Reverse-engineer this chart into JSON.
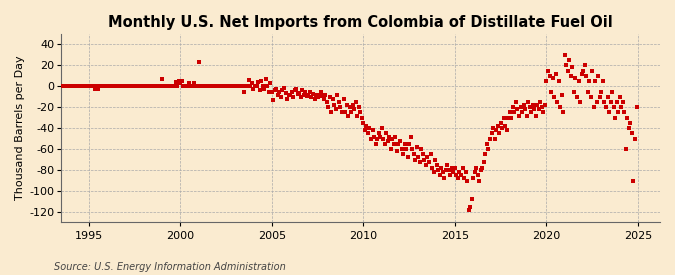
{
  "title": "Monthly U.S. Net Imports from Colombia of Distillate Fuel Oil",
  "ylabel": "Thousand Barrels per Day",
  "source": "Source: U.S. Energy Information Administration",
  "ylim": [
    -130,
    50
  ],
  "yticks": [
    40,
    20,
    0,
    -20,
    -40,
    -60,
    -80,
    -100,
    -120
  ],
  "xlim_start": 1993.5,
  "xlim_end": 2026.2,
  "xticks": [
    1995,
    2000,
    2005,
    2010,
    2015,
    2020,
    2025
  ],
  "background_color": "#faebd0",
  "dot_color": "#cc0000",
  "dot_size": 9,
  "title_fontsize": 10.5,
  "label_fontsize": 8,
  "tick_fontsize": 8,
  "source_fontsize": 7,
  "data": [
    [
      1993.0,
      0
    ],
    [
      1993.083,
      0
    ],
    [
      1993.167,
      0
    ],
    [
      1993.25,
      0
    ],
    [
      1993.333,
      0
    ],
    [
      1993.417,
      0
    ],
    [
      1993.5,
      0
    ],
    [
      1993.583,
      0
    ],
    [
      1993.667,
      0
    ],
    [
      1993.75,
      0
    ],
    [
      1993.833,
      0
    ],
    [
      1993.917,
      0
    ],
    [
      1994.0,
      0
    ],
    [
      1994.083,
      0
    ],
    [
      1994.167,
      0
    ],
    [
      1994.25,
      0
    ],
    [
      1994.333,
      0
    ],
    [
      1994.417,
      0
    ],
    [
      1994.5,
      0
    ],
    [
      1994.583,
      0
    ],
    [
      1994.667,
      0
    ],
    [
      1994.75,
      0
    ],
    [
      1994.833,
      0
    ],
    [
      1994.917,
      0
    ],
    [
      1995.0,
      0
    ],
    [
      1995.083,
      0
    ],
    [
      1995.167,
      0
    ],
    [
      1995.25,
      0
    ],
    [
      1995.333,
      -3
    ],
    [
      1995.417,
      0
    ],
    [
      1995.5,
      -3
    ],
    [
      1995.583,
      0
    ],
    [
      1995.667,
      0
    ],
    [
      1995.75,
      0
    ],
    [
      1995.833,
      0
    ],
    [
      1995.917,
      0
    ],
    [
      1996.0,
      0
    ],
    [
      1996.083,
      0
    ],
    [
      1996.167,
      0
    ],
    [
      1996.25,
      0
    ],
    [
      1996.333,
      0
    ],
    [
      1996.417,
      0
    ],
    [
      1996.5,
      0
    ],
    [
      1996.583,
      0
    ],
    [
      1996.667,
      0
    ],
    [
      1996.75,
      0
    ],
    [
      1996.833,
      0
    ],
    [
      1996.917,
      0
    ],
    [
      1997.0,
      0
    ],
    [
      1997.083,
      0
    ],
    [
      1997.167,
      0
    ],
    [
      1997.25,
      0
    ],
    [
      1997.333,
      0
    ],
    [
      1997.417,
      0
    ],
    [
      1997.5,
      0
    ],
    [
      1997.583,
      0
    ],
    [
      1997.667,
      0
    ],
    [
      1997.75,
      0
    ],
    [
      1997.833,
      0
    ],
    [
      1997.917,
      0
    ],
    [
      1998.0,
      0
    ],
    [
      1998.083,
      0
    ],
    [
      1998.167,
      0
    ],
    [
      1998.25,
      0
    ],
    [
      1998.333,
      0
    ],
    [
      1998.417,
      0
    ],
    [
      1998.5,
      0
    ],
    [
      1998.583,
      0
    ],
    [
      1998.667,
      0
    ],
    [
      1998.75,
      0
    ],
    [
      1998.833,
      0
    ],
    [
      1998.917,
      0
    ],
    [
      1999.0,
      7
    ],
    [
      1999.083,
      0
    ],
    [
      1999.167,
      0
    ],
    [
      1999.25,
      0
    ],
    [
      1999.333,
      0
    ],
    [
      1999.417,
      0
    ],
    [
      1999.5,
      0
    ],
    [
      1999.583,
      0
    ],
    [
      1999.667,
      0
    ],
    [
      1999.75,
      4
    ],
    [
      1999.833,
      0
    ],
    [
      1999.917,
      5
    ],
    [
      2000.0,
      3
    ],
    [
      2000.083,
      5
    ],
    [
      2000.167,
      0
    ],
    [
      2000.25,
      0
    ],
    [
      2000.333,
      0
    ],
    [
      2000.417,
      0
    ],
    [
      2000.5,
      3
    ],
    [
      2000.583,
      0
    ],
    [
      2000.667,
      0
    ],
    [
      2000.75,
      3
    ],
    [
      2000.833,
      0
    ],
    [
      2000.917,
      0
    ],
    [
      2001.0,
      23
    ],
    [
      2001.083,
      0
    ],
    [
      2001.167,
      0
    ],
    [
      2001.25,
      0
    ],
    [
      2001.333,
      0
    ],
    [
      2001.417,
      0
    ],
    [
      2001.5,
      0
    ],
    [
      2001.583,
      0
    ],
    [
      2001.667,
      0
    ],
    [
      2001.75,
      0
    ],
    [
      2001.833,
      0
    ],
    [
      2001.917,
      0
    ],
    [
      2002.0,
      0
    ],
    [
      2002.083,
      0
    ],
    [
      2002.167,
      0
    ],
    [
      2002.25,
      0
    ],
    [
      2002.333,
      0
    ],
    [
      2002.417,
      0
    ],
    [
      2002.5,
      0
    ],
    [
      2002.583,
      0
    ],
    [
      2002.667,
      0
    ],
    [
      2002.75,
      0
    ],
    [
      2002.833,
      0
    ],
    [
      2002.917,
      0
    ],
    [
      2003.0,
      0
    ],
    [
      2003.083,
      0
    ],
    [
      2003.167,
      0
    ],
    [
      2003.25,
      0
    ],
    [
      2003.333,
      0
    ],
    [
      2003.417,
      0
    ],
    [
      2003.5,
      -5
    ],
    [
      2003.583,
      0
    ],
    [
      2003.667,
      0
    ],
    [
      2003.75,
      6
    ],
    [
      2003.833,
      0
    ],
    [
      2003.917,
      3
    ],
    [
      2004.0,
      -3
    ],
    [
      2004.083,
      0
    ],
    [
      2004.167,
      0
    ],
    [
      2004.25,
      4
    ],
    [
      2004.333,
      -4
    ],
    [
      2004.417,
      5
    ],
    [
      2004.5,
      0
    ],
    [
      2004.583,
      -3
    ],
    [
      2004.667,
      7
    ],
    [
      2004.75,
      0
    ],
    [
      2004.833,
      -5
    ],
    [
      2004.917,
      3
    ],
    [
      2005.0,
      -5
    ],
    [
      2005.083,
      -13
    ],
    [
      2005.167,
      -4
    ],
    [
      2005.25,
      -3
    ],
    [
      2005.333,
      -8
    ],
    [
      2005.417,
      -5
    ],
    [
      2005.5,
      -10
    ],
    [
      2005.583,
      -4
    ],
    [
      2005.667,
      -2
    ],
    [
      2005.75,
      -6
    ],
    [
      2005.833,
      -12
    ],
    [
      2005.917,
      -8
    ],
    [
      2006.0,
      -8
    ],
    [
      2006.083,
      -5
    ],
    [
      2006.167,
      -10
    ],
    [
      2006.25,
      -4
    ],
    [
      2006.333,
      -3
    ],
    [
      2006.417,
      -7
    ],
    [
      2006.5,
      -6
    ],
    [
      2006.583,
      -10
    ],
    [
      2006.667,
      -4
    ],
    [
      2006.75,
      -8
    ],
    [
      2006.833,
      -5
    ],
    [
      2006.917,
      -9
    ],
    [
      2007.0,
      -8
    ],
    [
      2007.083,
      -5
    ],
    [
      2007.167,
      -10
    ],
    [
      2007.25,
      -7
    ],
    [
      2007.333,
      -12
    ],
    [
      2007.417,
      -8
    ],
    [
      2007.5,
      -10
    ],
    [
      2007.583,
      -8
    ],
    [
      2007.667,
      -5
    ],
    [
      2007.75,
      -9
    ],
    [
      2007.833,
      -12
    ],
    [
      2007.917,
      -8
    ],
    [
      2008.0,
      -15
    ],
    [
      2008.083,
      -20
    ],
    [
      2008.167,
      -10
    ],
    [
      2008.25,
      -25
    ],
    [
      2008.333,
      -12
    ],
    [
      2008.417,
      -18
    ],
    [
      2008.5,
      -22
    ],
    [
      2008.583,
      -8
    ],
    [
      2008.667,
      -15
    ],
    [
      2008.75,
      -20
    ],
    [
      2008.833,
      -25
    ],
    [
      2008.917,
      -12
    ],
    [
      2009.0,
      -25
    ],
    [
      2009.083,
      -18
    ],
    [
      2009.167,
      -28
    ],
    [
      2009.25,
      -20
    ],
    [
      2009.333,
      -25
    ],
    [
      2009.417,
      -18
    ],
    [
      2009.5,
      -22
    ],
    [
      2009.583,
      -15
    ],
    [
      2009.667,
      -28
    ],
    [
      2009.75,
      -20
    ],
    [
      2009.833,
      -25
    ],
    [
      2009.917,
      -30
    ],
    [
      2010.0,
      -35
    ],
    [
      2010.083,
      -42
    ],
    [
      2010.167,
      -38
    ],
    [
      2010.25,
      -45
    ],
    [
      2010.333,
      -40
    ],
    [
      2010.417,
      -50
    ],
    [
      2010.5,
      -42
    ],
    [
      2010.583,
      -48
    ],
    [
      2010.667,
      -55
    ],
    [
      2010.75,
      -50
    ],
    [
      2010.833,
      -45
    ],
    [
      2010.917,
      -48
    ],
    [
      2011.0,
      -40
    ],
    [
      2011.083,
      -50
    ],
    [
      2011.167,
      -55
    ],
    [
      2011.25,
      -45
    ],
    [
      2011.333,
      -52
    ],
    [
      2011.417,
      -48
    ],
    [
      2011.5,
      -60
    ],
    [
      2011.583,
      -50
    ],
    [
      2011.667,
      -55
    ],
    [
      2011.75,
      -48
    ],
    [
      2011.833,
      -62
    ],
    [
      2011.917,
      -55
    ],
    [
      2012.0,
      -52
    ],
    [
      2012.083,
      -60
    ],
    [
      2012.167,
      -65
    ],
    [
      2012.25,
      -55
    ],
    [
      2012.333,
      -60
    ],
    [
      2012.417,
      -68
    ],
    [
      2012.5,
      -55
    ],
    [
      2012.583,
      -48
    ],
    [
      2012.667,
      -60
    ],
    [
      2012.75,
      -65
    ],
    [
      2012.833,
      -70
    ],
    [
      2012.917,
      -58
    ],
    [
      2013.0,
      -68
    ],
    [
      2013.083,
      -72
    ],
    [
      2013.167,
      -60
    ],
    [
      2013.25,
      -65
    ],
    [
      2013.333,
      -70
    ],
    [
      2013.417,
      -75
    ],
    [
      2013.5,
      -68
    ],
    [
      2013.583,
      -72
    ],
    [
      2013.667,
      -65
    ],
    [
      2013.75,
      -78
    ],
    [
      2013.833,
      -82
    ],
    [
      2013.917,
      -70
    ],
    [
      2014.0,
      -75
    ],
    [
      2014.083,
      -80
    ],
    [
      2014.167,
      -85
    ],
    [
      2014.25,
      -78
    ],
    [
      2014.333,
      -82
    ],
    [
      2014.417,
      -88
    ],
    [
      2014.5,
      -80
    ],
    [
      2014.583,
      -75
    ],
    [
      2014.667,
      -80
    ],
    [
      2014.75,
      -85
    ],
    [
      2014.833,
      -78
    ],
    [
      2014.917,
      -82
    ],
    [
      2015.0,
      -78
    ],
    [
      2015.083,
      -85
    ],
    [
      2015.167,
      -88
    ],
    [
      2015.25,
      -82
    ],
    [
      2015.333,
      -85
    ],
    [
      2015.417,
      -78
    ],
    [
      2015.5,
      -88
    ],
    [
      2015.583,
      -82
    ],
    [
      2015.667,
      -90
    ],
    [
      2015.75,
      -118
    ],
    [
      2015.833,
      -115
    ],
    [
      2015.917,
      -108
    ],
    [
      2016.0,
      -88
    ],
    [
      2016.083,
      -82
    ],
    [
      2016.167,
      -78
    ],
    [
      2016.25,
      -85
    ],
    [
      2016.333,
      -90
    ],
    [
      2016.417,
      -80
    ],
    [
      2016.5,
      -78
    ],
    [
      2016.583,
      -72
    ],
    [
      2016.667,
      -65
    ],
    [
      2016.75,
      -55
    ],
    [
      2016.833,
      -60
    ],
    [
      2016.917,
      -50
    ],
    [
      2017.0,
      -45
    ],
    [
      2017.083,
      -40
    ],
    [
      2017.167,
      -50
    ],
    [
      2017.25,
      -42
    ],
    [
      2017.333,
      -38
    ],
    [
      2017.417,
      -45
    ],
    [
      2017.5,
      -35
    ],
    [
      2017.583,
      -40
    ],
    [
      2017.667,
      -30
    ],
    [
      2017.75,
      -38
    ],
    [
      2017.833,
      -42
    ],
    [
      2017.917,
      -30
    ],
    [
      2018.0,
      -25
    ],
    [
      2018.083,
      -30
    ],
    [
      2018.167,
      -20
    ],
    [
      2018.25,
      -25
    ],
    [
      2018.333,
      -15
    ],
    [
      2018.417,
      -22
    ],
    [
      2018.5,
      -28
    ],
    [
      2018.583,
      -20
    ],
    [
      2018.667,
      -25
    ],
    [
      2018.75,
      -18
    ],
    [
      2018.833,
      -22
    ],
    [
      2018.917,
      -28
    ],
    [
      2019.0,
      -15
    ],
    [
      2019.083,
      -20
    ],
    [
      2019.167,
      -25
    ],
    [
      2019.25,
      -18
    ],
    [
      2019.333,
      -22
    ],
    [
      2019.417,
      -28
    ],
    [
      2019.5,
      -18
    ],
    [
      2019.583,
      -22
    ],
    [
      2019.667,
      -15
    ],
    [
      2019.75,
      -20
    ],
    [
      2019.833,
      -25
    ],
    [
      2019.917,
      -18
    ],
    [
      2020.0,
      5
    ],
    [
      2020.083,
      15
    ],
    [
      2020.167,
      10
    ],
    [
      2020.25,
      -5
    ],
    [
      2020.333,
      8
    ],
    [
      2020.417,
      -10
    ],
    [
      2020.5,
      12
    ],
    [
      2020.583,
      -15
    ],
    [
      2020.667,
      5
    ],
    [
      2020.75,
      -20
    ],
    [
      2020.833,
      -8
    ],
    [
      2020.917,
      -25
    ],
    [
      2021.0,
      30
    ],
    [
      2021.083,
      20
    ],
    [
      2021.167,
      15
    ],
    [
      2021.25,
      25
    ],
    [
      2021.333,
      10
    ],
    [
      2021.417,
      18
    ],
    [
      2021.5,
      -5
    ],
    [
      2021.583,
      8
    ],
    [
      2021.667,
      -10
    ],
    [
      2021.75,
      5
    ],
    [
      2021.833,
      -15
    ],
    [
      2021.917,
      12
    ],
    [
      2022.0,
      15
    ],
    [
      2022.083,
      20
    ],
    [
      2022.167,
      10
    ],
    [
      2022.25,
      -5
    ],
    [
      2022.333,
      5
    ],
    [
      2022.417,
      -10
    ],
    [
      2022.5,
      15
    ],
    [
      2022.583,
      -20
    ],
    [
      2022.667,
      5
    ],
    [
      2022.75,
      -15
    ],
    [
      2022.833,
      10
    ],
    [
      2022.917,
      -10
    ],
    [
      2023.0,
      -5
    ],
    [
      2023.083,
      5
    ],
    [
      2023.167,
      -15
    ],
    [
      2023.25,
      -20
    ],
    [
      2023.333,
      -10
    ],
    [
      2023.417,
      -25
    ],
    [
      2023.5,
      -15
    ],
    [
      2023.583,
      -5
    ],
    [
      2023.667,
      -20
    ],
    [
      2023.75,
      -30
    ],
    [
      2023.833,
      -15
    ],
    [
      2023.917,
      -25
    ],
    [
      2024.0,
      -10
    ],
    [
      2024.083,
      -20
    ],
    [
      2024.167,
      -15
    ],
    [
      2024.25,
      -25
    ],
    [
      2024.333,
      -60
    ],
    [
      2024.417,
      -30
    ],
    [
      2024.5,
      -40
    ],
    [
      2024.583,
      -35
    ],
    [
      2024.667,
      -45
    ],
    [
      2024.75,
      -90
    ],
    [
      2024.833,
      -50
    ],
    [
      2024.917,
      -20
    ]
  ]
}
